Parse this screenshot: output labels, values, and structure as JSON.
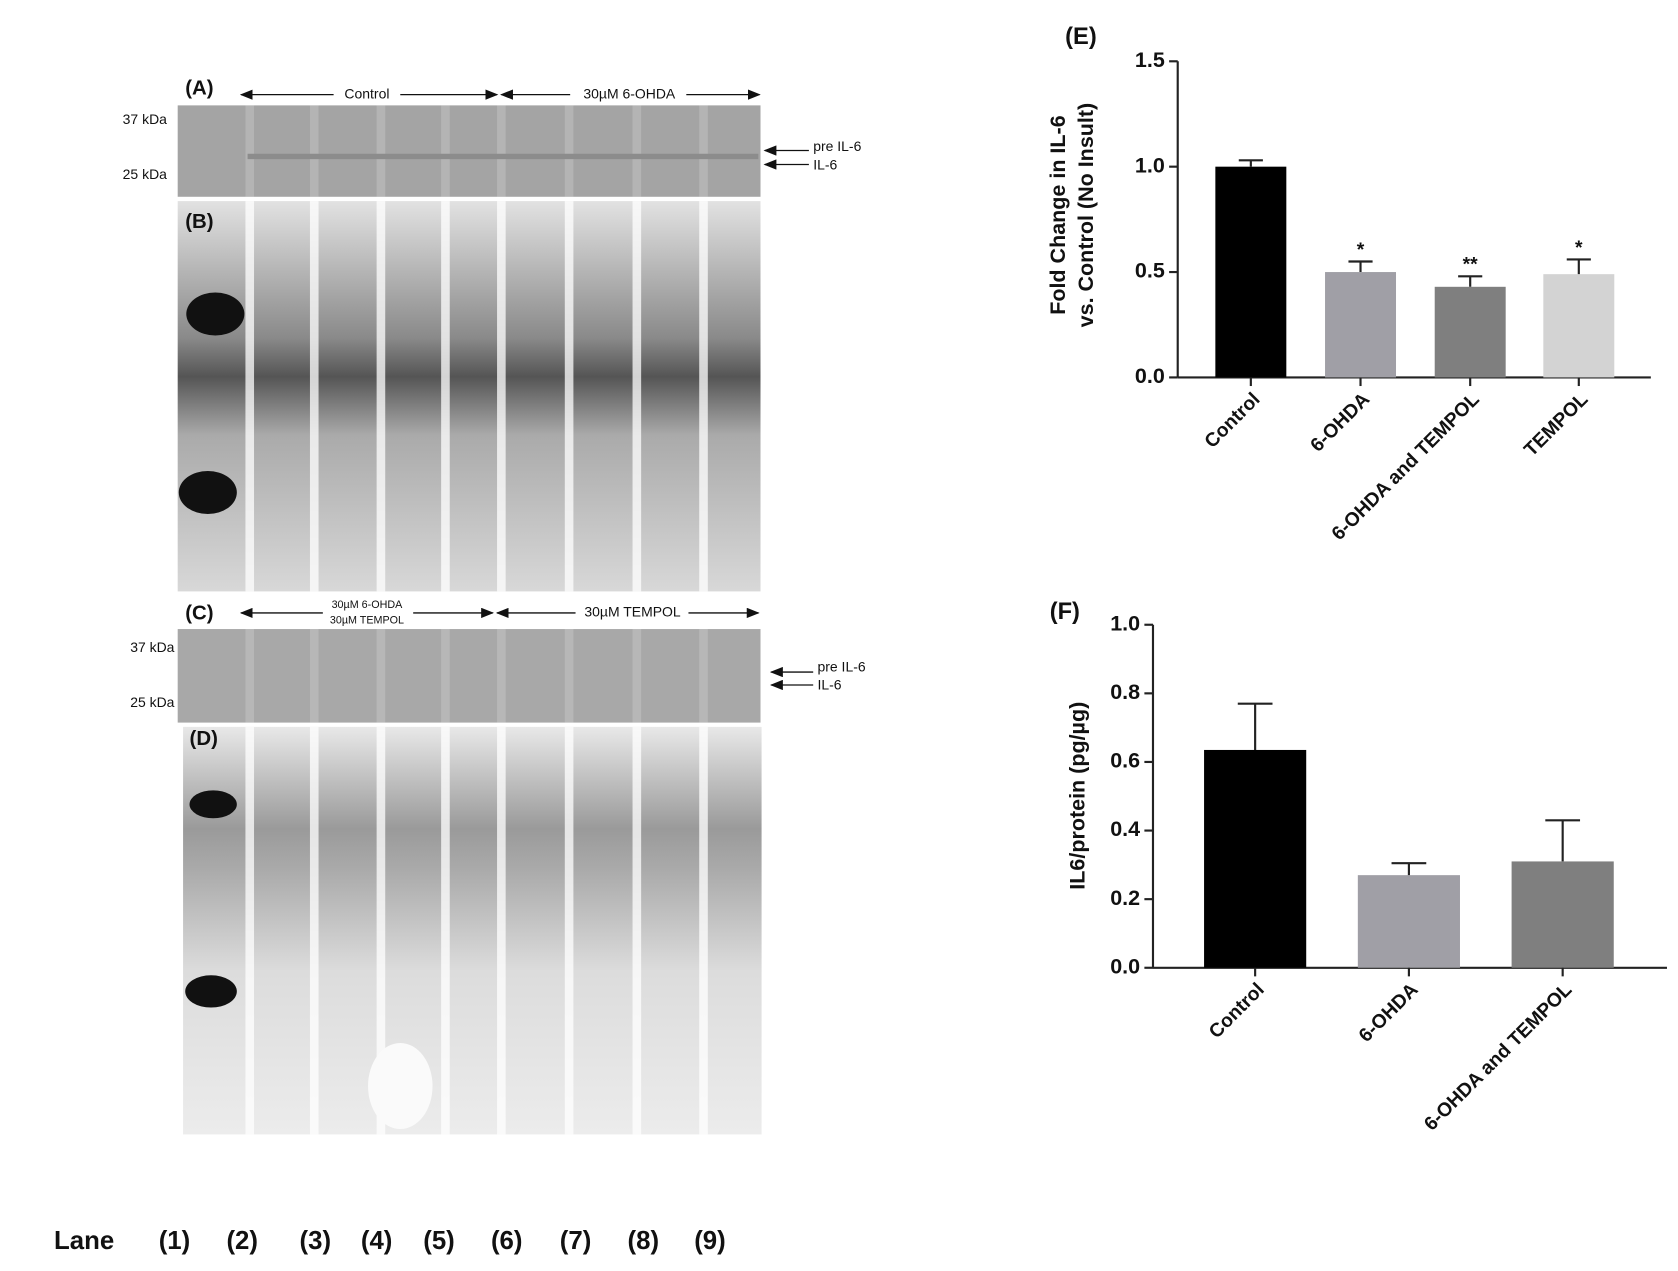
{
  "chart_data": [
    {
      "type": "bar",
      "title": "(E)",
      "ylabel": [
        "Fold Change in IL-6",
        "vs. Control (No Insult)"
      ],
      "categories": [
        "Control",
        "6-OHDA",
        "6-OHDA and TEMPOL",
        "TEMPOL"
      ],
      "values": [
        1.0,
        0.5,
        0.43,
        0.49
      ],
      "errors": [
        0.03,
        0.05,
        0.05,
        0.07
      ],
      "significance": [
        null,
        "*",
        "**",
        "*"
      ],
      "colors": [
        "#000000",
        "#a09fa6",
        "#7f7f7f",
        "#d3d3d3"
      ],
      "ylim": [
        0,
        1.5
      ],
      "yticks": [
        {
          "value": 0,
          "label": "0.0"
        },
        {
          "value": 0.5,
          "label": "0.5"
        },
        {
          "value": 1,
          "label": "1.0"
        },
        {
          "value": 1.5,
          "label": "1.5"
        }
      ]
    },
    {
      "type": "bar",
      "title": "(F)",
      "ylabel": [
        "IL6/protein (pg/µg)"
      ],
      "categories": [
        "Control",
        "6-OHDA",
        "6-OHDA and TEMPOL"
      ],
      "values": [
        0.635,
        0.27,
        0.31
      ],
      "errors": [
        0.135,
        0.035,
        0.12
      ],
      "colors": [
        "#000000",
        "#a09fa6",
        "#7f7f7f"
      ],
      "ylim": [
        0,
        1.0
      ],
      "yticks": [
        {
          "value": 0,
          "label": "0.0"
        },
        {
          "value": 0.2,
          "label": "0.2"
        },
        {
          "value": 0.4,
          "label": "0.4"
        },
        {
          "value": 0.6,
          "label": "0.6"
        },
        {
          "value": 0.8,
          "label": "0.8"
        },
        {
          "value": 1,
          "label": "1.0"
        }
      ]
    }
  ],
  "blots": {
    "panels": [
      "(A)",
      "(B)",
      "(C)",
      "(D)"
    ],
    "markers_top": [
      "37 kDa",
      "25 kDa"
    ],
    "markers_bottom": [
      "37 kDa",
      "25 kDa"
    ],
    "groups_top": [
      "Control",
      "30µM 6-OHDA"
    ],
    "groups_bottom": [
      [
        "30µM 6-OHDA",
        "30µM TEMPOL"
      ],
      "30µM TEMPOL"
    ],
    "arrows_top": [
      "pre IL-6",
      "IL-6"
    ],
    "arrows_bottom": [
      "pre IL-6",
      "IL-6"
    ]
  },
  "lanes": {
    "label": "Lane",
    "numbers": [
      "(1)",
      "(2)",
      "(3)",
      "(4)",
      "(5)",
      "(6)",
      "(7)",
      "(8)",
      "(9)"
    ]
  }
}
